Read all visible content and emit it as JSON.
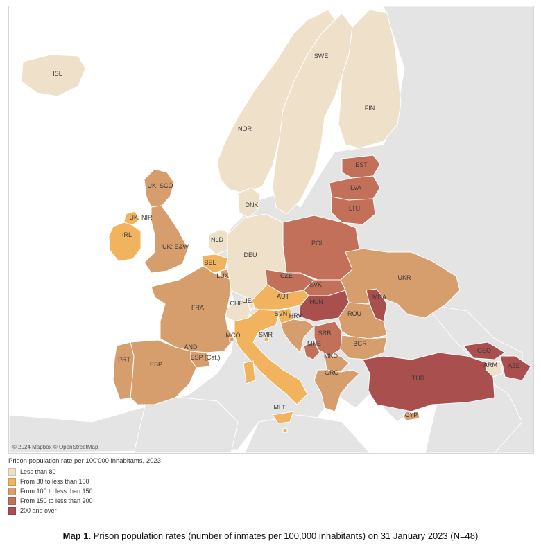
{
  "colors": {
    "sea": "#ffffff",
    "land_other": "#e6e6e6",
    "border": "#ffffff",
    "c0": "#efe1c9",
    "c1": "#f1b35e",
    "c2": "#d69d6d",
    "c3": "#c2705a",
    "c4": "#a9504f"
  },
  "map": {
    "attribution": "© 2024 Mapbox © OpenStreetMap",
    "countries": [
      {
        "code": "ISL",
        "category": 0
      },
      {
        "code": "SWE",
        "category": 0
      },
      {
        "code": "FIN",
        "category": 0
      },
      {
        "code": "NOR",
        "category": 0
      },
      {
        "code": "DNK",
        "category": 0
      },
      {
        "code": "EST",
        "category": 3
      },
      {
        "code": "LVA",
        "category": 3
      },
      {
        "code": "LTU",
        "category": 3
      },
      {
        "code": "UK: SCO",
        "category": 2
      },
      {
        "code": "UK: NIR",
        "category": 1
      },
      {
        "code": "IRL",
        "category": 1
      },
      {
        "code": "UK: E&W",
        "category": 2
      },
      {
        "code": "NLD",
        "category": 0
      },
      {
        "code": "BEL",
        "category": 1
      },
      {
        "code": "LUX",
        "category": 2
      },
      {
        "code": "DEU",
        "category": 0
      },
      {
        "code": "POL",
        "category": 3
      },
      {
        "code": "CZE",
        "category": 3
      },
      {
        "code": "SVK",
        "category": 3
      },
      {
        "code": "UKR",
        "category": 2
      },
      {
        "code": "MDA",
        "category": 4
      },
      {
        "code": "FRA",
        "category": 2
      },
      {
        "code": "CHE",
        "category": 0
      },
      {
        "code": "LIE",
        "category": 0
      },
      {
        "code": "AUT",
        "category": 1
      },
      {
        "code": "HUN",
        "category": 4
      },
      {
        "code": "SVN",
        "category": 1
      },
      {
        "code": "HRV",
        "category": 2
      },
      {
        "code": "ROU",
        "category": 2
      },
      {
        "code": "MCO",
        "category": 2
      },
      {
        "code": "SMR",
        "category": 1
      },
      {
        "code": "ITA",
        "category": 1
      },
      {
        "code": "SRB",
        "category": 3
      },
      {
        "code": "MNE",
        "category": 3
      },
      {
        "code": "BGR",
        "category": 2
      },
      {
        "code": "MKD",
        "category": 2
      },
      {
        "code": "AND",
        "category": 2
      },
      {
        "code": "ESP (Cat.)",
        "category": 2
      },
      {
        "code": "PRT",
        "category": 2
      },
      {
        "code": "ESP",
        "category": 2
      },
      {
        "code": "GRC",
        "category": 2
      },
      {
        "code": "GEO",
        "category": 4
      },
      {
        "code": "ARM",
        "category": 0
      },
      {
        "code": "AZE",
        "category": 4
      },
      {
        "code": "TUR",
        "category": 4
      },
      {
        "code": "MLT",
        "category": 1
      },
      {
        "code": "CYP",
        "category": 2
      }
    ]
  },
  "legend": {
    "title": "Prison population rate per 100'000 inhabitants, 2023",
    "items": [
      {
        "label": "Less than 80",
        "color": "#efe1c9"
      },
      {
        "label": "From 80 to less than 100",
        "color": "#f1b35e"
      },
      {
        "label": "From 100 to less than 150",
        "color": "#d69d6d"
      },
      {
        "label": "From 150 to less than 200",
        "color": "#c2705a"
      },
      {
        "label": "200 and over",
        "color": "#a9504f"
      }
    ]
  },
  "caption": {
    "bold": "Map 1.",
    "text": " Prison population rates (number of inmates per 100,000 inhabitants) on 31 January 2023 (N=48)"
  }
}
